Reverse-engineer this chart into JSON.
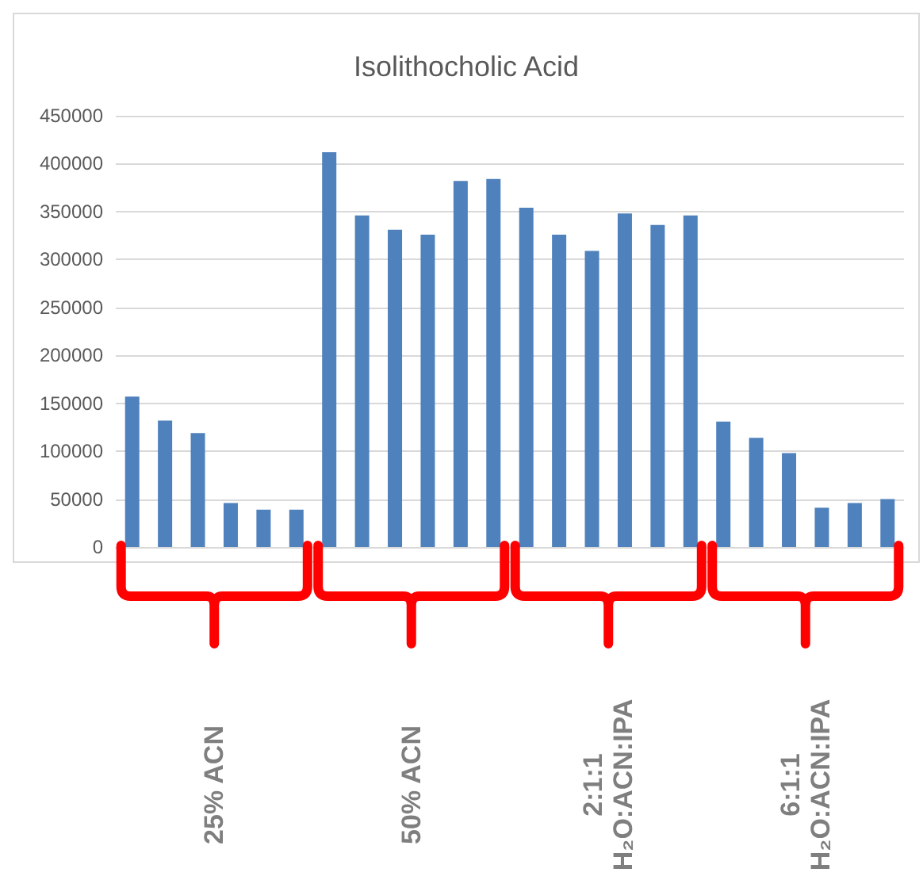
{
  "chart_data": {
    "type": "bar",
    "title": "Isolithocholic Acid",
    "categories": [
      null,
      null,
      null,
      null,
      null,
      null,
      null,
      null,
      null,
      null,
      null,
      null,
      null,
      null,
      null,
      null,
      null,
      null,
      null,
      null,
      null,
      null,
      null,
      null
    ],
    "values": [
      157000,
      132000,
      119000,
      46000,
      39000,
      39000,
      412000,
      346000,
      331000,
      326000,
      382000,
      384000,
      354000,
      326000,
      309000,
      348000,
      336000,
      346000,
      131000,
      114000,
      98000,
      41000,
      46000,
      50000
    ],
    "color": "#4f81bd",
    "ylim": [
      0,
      450000
    ],
    "yticks": [
      0,
      50000,
      100000,
      150000,
      200000,
      250000,
      300000,
      350000,
      400000,
      450000
    ],
    "grid": "y",
    "tick_labels": "y",
    "annotations": [
      "25% ACN",
      "50% ACN",
      "2:1:1\nH₂O:ACN:IPA",
      "6:1:1\nH₂O:ACN:IPA"
    ]
  }
}
